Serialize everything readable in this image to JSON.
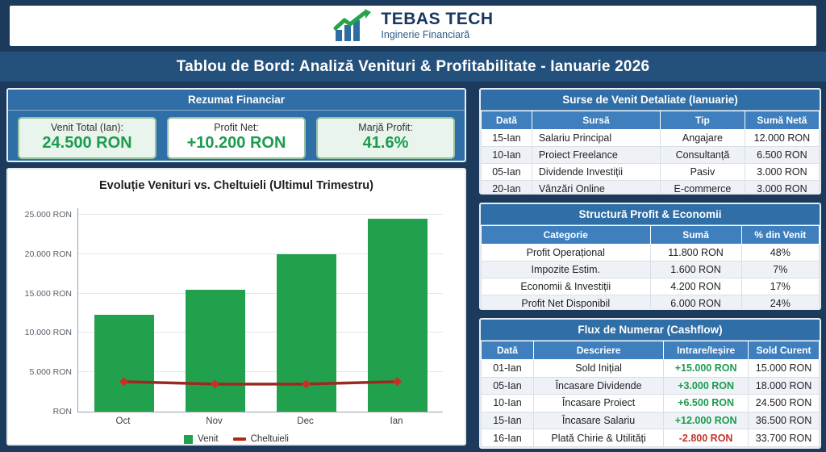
{
  "brand": {
    "name": "TEBAS TECH",
    "tagline": "Inginerie Financiară",
    "icon": "growth-trend-icon"
  },
  "banner": {
    "title": "Tablou de Bord: Analiză Venituri & Profitabilitate - Ianuarie 2026"
  },
  "summary": {
    "title": "Rezumat Financiar",
    "cards": [
      {
        "label": "Venit Total (Ian):",
        "value": "24.500 RON"
      },
      {
        "label": "Profit Net:",
        "value": "+10.200 RON"
      },
      {
        "label": "Marjă Profit:",
        "value": "41.6%"
      }
    ]
  },
  "chart_data": {
    "type": "bar",
    "title": "Evoluție Venituri vs. Cheltuieli (Ultimul Trimestru)",
    "categories": [
      "Oct",
      "Nov",
      "Dec",
      "Ian"
    ],
    "series": [
      {
        "name": "Venit",
        "type": "bar",
        "color": "#21a14e",
        "values": [
          12300,
          15500,
          20000,
          24500
        ]
      },
      {
        "name": "Cheltuieli",
        "type": "line",
        "color": "#9b291f",
        "marker_color": "#cd2e24",
        "values": [
          3800,
          3500,
          3500,
          3800
        ]
      }
    ],
    "xlabel": "",
    "ylabel": "RON",
    "ylim": [
      0,
      25800
    ],
    "yticks": [
      0,
      5000,
      10000,
      15000,
      20000,
      25000
    ],
    "ytick_labels": [
      "RON",
      "5.000 RON",
      "10.000 RON",
      "15.000 RON",
      "20.000 RON",
      "25.000 RON"
    ],
    "grid": true,
    "legend_position": "bottom"
  },
  "tables": [
    {
      "title": "Surse de Venit Detaliate (Ianuarie)",
      "columns": [
        "Dată",
        "Sursă",
        "Tip",
        "Sumă Netă"
      ],
      "rows": [
        [
          "15-Ian",
          "Salariu Principal",
          "Angajare",
          "12.000 RON"
        ],
        [
          "10-Ian",
          "Proiect Freelance",
          "Consultanță",
          "6.500 RON"
        ],
        [
          "05-Ian",
          "Dividende Investiții",
          "Pasiv",
          "3.000 RON"
        ],
        [
          "20-Ian",
          "Vânzări Online",
          "E-commerce",
          "3.000 RON"
        ]
      ]
    },
    {
      "title": "Structură Profit & Economii",
      "columns": [
        "Categorie",
        "Sumă",
        "% din Venit"
      ],
      "rows": [
        [
          "Profit Operațional",
          "11.800 RON",
          "48%"
        ],
        [
          "Impozite Estim.",
          "1.600 RON",
          "7%"
        ],
        [
          "Economii & Investiții",
          "4.200 RON",
          "17%"
        ],
        [
          "Profit Net Disponibil",
          "6.000 RON",
          "24%"
        ]
      ]
    },
    {
      "title": "Flux de Numerar (Cashflow)",
      "columns": [
        "Dată",
        "Descriere",
        "Intrare/Ieșire",
        "Sold Curent"
      ],
      "rows": [
        [
          "01-Ian",
          "Sold Inițial",
          "+15.000 RON",
          "15.000 RON"
        ],
        [
          "05-Ian",
          "Încasare Dividende",
          "+3.000 RON",
          "18.000 RON"
        ],
        [
          "10-Ian",
          "Încasare Proiect",
          "+6.500 RON",
          "24.500 RON"
        ],
        [
          "15-Ian",
          "Încasare Salariu",
          "+12.000 RON",
          "36.500 RON"
        ],
        [
          "16-Ian",
          "Plată Chirie & Utilități",
          "-2.800 RON",
          "33.700 RON"
        ]
      ]
    }
  ],
  "colors": {
    "page_background": "#1b3a5c",
    "banner_blue": "#24517c",
    "panel_blue": "#2f6ea6",
    "column_header_blue": "#3f7fbe",
    "value_green": "#1b9c4f",
    "bar_green": "#21a14e",
    "line_red": "#9b291f",
    "negative_red": "#c23428",
    "card_green_bg": "#e9f4ec"
  }
}
